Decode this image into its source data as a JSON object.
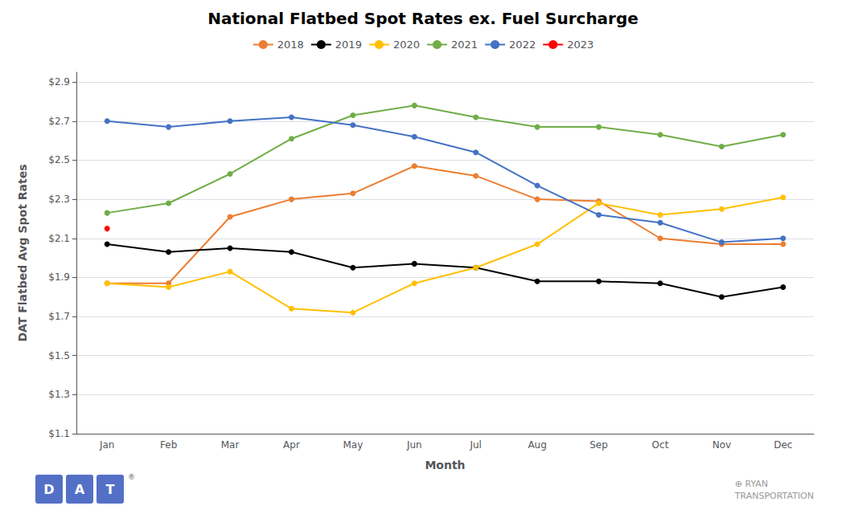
{
  "chart_data": {
    "type": "line",
    "title": "National Flatbed Spot Rates ex. Fuel Surcharge",
    "xlabel": "Month",
    "ylabel": "DAT Flatbed Avg Spot Rates",
    "categories": [
      "Jan",
      "Feb",
      "Mar",
      "Apr",
      "May",
      "Jun",
      "Jul",
      "Aug",
      "Sep",
      "Oct",
      "Nov",
      "Dec"
    ],
    "series": [
      {
        "name": "2018",
        "color": "#ED7D31",
        "values": [
          1.87,
          1.87,
          2.21,
          2.3,
          2.33,
          2.47,
          2.42,
          2.3,
          2.29,
          2.1,
          2.07,
          2.07
        ]
      },
      {
        "name": "2019",
        "color": "#000000",
        "values": [
          2.07,
          2.03,
          2.05,
          2.03,
          1.95,
          1.97,
          1.95,
          1.88,
          1.88,
          1.87,
          1.8,
          1.85
        ]
      },
      {
        "name": "2020",
        "color": "#FFC000",
        "values": [
          1.87,
          1.85,
          1.93,
          1.74,
          1.72,
          1.87,
          1.95,
          2.07,
          2.28,
          2.22,
          2.25,
          2.31
        ]
      },
      {
        "name": "2021",
        "color": "#70AD47",
        "values": [
          2.23,
          2.28,
          2.43,
          2.61,
          2.73,
          2.78,
          2.72,
          2.67,
          2.67,
          2.63,
          2.57,
          2.63
        ]
      },
      {
        "name": "2022",
        "color": "#4472C4",
        "values": [
          2.7,
          2.67,
          2.7,
          2.72,
          2.68,
          2.62,
          2.54,
          2.37,
          2.22,
          2.18,
          2.08,
          2.1
        ]
      },
      {
        "name": "2023",
        "color": "#FF0000",
        "values": [
          2.15,
          null,
          null,
          null,
          null,
          null,
          null,
          null,
          null,
          null,
          null,
          null
        ]
      }
    ],
    "ylim": [
      1.1,
      2.95
    ],
    "yticks": [
      {
        "value": 1.1,
        "label": "$1.1"
      },
      {
        "value": 1.3,
        "label": "$1.3"
      },
      {
        "value": 1.5,
        "label": "$1.5"
      },
      {
        "value": 1.7,
        "label": "$1.7"
      },
      {
        "value": 1.9,
        "label": "$1.9"
      },
      {
        "value": 2.1,
        "label": "$2.1"
      },
      {
        "value": 2.3,
        "label": "$2.3"
      },
      {
        "value": 2.5,
        "label": "$2.5"
      },
      {
        "value": 2.7,
        "label": "$2.7"
      },
      {
        "value": 2.9,
        "label": "$2.9"
      }
    ],
    "grid": true,
    "legend": "top",
    "marker": "circle",
    "annotations": [
      "D",
      "A",
      "T",
      "®",
      "⊕ RYAN",
      "TRANSPORTATION"
    ]
  }
}
